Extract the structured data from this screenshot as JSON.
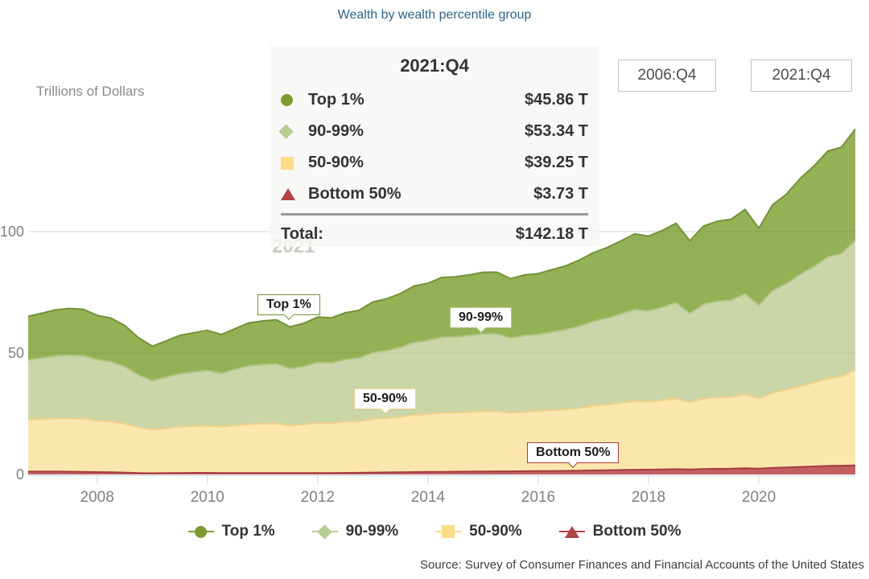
{
  "title": "Wealth by wealth percentile group",
  "y_axis_label": "Trillions of Dollars",
  "watermark_year": "2021",
  "range_selectors": [
    {
      "label": "2006:Q4"
    },
    {
      "label": "2021:Q4"
    }
  ],
  "tooltip": {
    "title": "2021:Q4",
    "rows": [
      {
        "label": "Top 1%",
        "value": "$45.86 T"
      },
      {
        "label": "90-99%",
        "value": "$53.34 T"
      },
      {
        "label": "50-90%",
        "value": "$39.25 T"
      },
      {
        "label": "Bottom 50%",
        "value": "$3.73 T"
      }
    ],
    "total_label": "Total:",
    "total_value": "$142.18 T"
  },
  "source": "Source: Survey of Consumer Finances and Financial Accounts of the United States",
  "chart_data": {
    "type": "area",
    "stacked": true,
    "title": "Wealth by wealth percentile group",
    "ylabel": "Trillions of Dollars",
    "xlim": [
      2006.75,
      2021.75
    ],
    "ylim": [
      0,
      150
    ],
    "y_ticks": [
      0,
      50,
      100
    ],
    "x_ticks": [
      2008,
      2010,
      2012,
      2014,
      2016,
      2018,
      2020
    ],
    "grid": "horizontal",
    "legend_position": "bottom",
    "x_period_start": "2006:Q4",
    "x_period_end": "2021:Q4",
    "x": [
      2006.75,
      2007,
      2007.25,
      2007.5,
      2007.75,
      2008,
      2008.25,
      2008.5,
      2008.75,
      2009,
      2009.25,
      2009.5,
      2009.75,
      2010,
      2010.25,
      2010.5,
      2010.75,
      2011,
      2011.25,
      2011.5,
      2011.75,
      2012,
      2012.25,
      2012.5,
      2012.75,
      2013,
      2013.25,
      2013.5,
      2013.75,
      2014,
      2014.25,
      2014.5,
      2014.75,
      2015,
      2015.25,
      2015.5,
      2015.75,
      2016,
      2016.25,
      2016.5,
      2016.75,
      2017,
      2017.25,
      2017.5,
      2017.75,
      2018,
      2018.25,
      2018.5,
      2018.75,
      2019,
      2019.25,
      2019.5,
      2019.75,
      2020,
      2020.25,
      2020.5,
      2020.75,
      2021,
      2021.25,
      2021.5,
      2021.75
    ],
    "series": [
      {
        "id": "top1",
        "name": "Top 1%",
        "marker": "circle",
        "fill": "#95b155",
        "stroke": "#72923a",
        "marker_color": "#7d9b31",
        "values": [
          18.0,
          18.5,
          19.0,
          19.3,
          19.2,
          18.3,
          18.0,
          17.0,
          15.4,
          14.2,
          15.0,
          15.8,
          16.2,
          16.6,
          16.0,
          16.8,
          17.7,
          18.0,
          18.2,
          17.2,
          17.8,
          18.7,
          18.6,
          19.3,
          19.7,
          20.9,
          21.4,
          22.2,
          23.3,
          23.7,
          24.6,
          24.7,
          25.0,
          25.4,
          25.4,
          24.4,
          25.0,
          25.1,
          25.7,
          26.3,
          27.2,
          28.3,
          29.1,
          30.1,
          31.2,
          30.8,
          31.7,
          32.8,
          30.0,
          32.3,
          33.0,
          33.3,
          34.8,
          31.8,
          35.3,
          36.9,
          39.5,
          41.4,
          43.6,
          43.9,
          45.86
        ]
      },
      {
        "id": "p90-99",
        "name": "90-99%",
        "marker": "diamond",
        "fill": "#cbd6a8",
        "stroke": "#b2c687",
        "marker_color": "#b9cd90",
        "values": [
          24.7,
          25.2,
          25.8,
          26.0,
          25.9,
          25.0,
          24.6,
          23.4,
          21.5,
          20.2,
          21.0,
          21.9,
          22.3,
          22.7,
          22.0,
          23.0,
          24.0,
          24.3,
          24.5,
          23.3,
          23.9,
          24.9,
          24.8,
          25.6,
          26.0,
          27.3,
          27.8,
          28.6,
          29.8,
          30.2,
          31.1,
          31.2,
          31.5,
          31.9,
          31.9,
          30.8,
          31.4,
          31.6,
          32.2,
          32.8,
          33.7,
          34.8,
          35.6,
          36.6,
          37.7,
          37.3,
          38.2,
          39.3,
          36.5,
          38.9,
          39.6,
          39.9,
          41.4,
          38.4,
          42.0,
          43.6,
          46.0,
          47.8,
          50.0,
          50.5,
          53.34
        ]
      },
      {
        "id": "p50-90",
        "name": "50-90%",
        "marker": "square",
        "fill": "#fbe7ad",
        "stroke": "#f0d189",
        "marker_color": "#fbdc87",
        "values": [
          21.2,
          21.5,
          21.8,
          21.9,
          21.8,
          21.2,
          20.9,
          20.2,
          18.8,
          17.9,
          18.4,
          19.0,
          19.2,
          19.4,
          19.0,
          19.6,
          20.1,
          20.3,
          20.4,
          19.7,
          20.0,
          20.6,
          20.5,
          21.0,
          21.2,
          22.0,
          22.3,
          22.8,
          23.5,
          23.8,
          24.3,
          24.3,
          24.5,
          24.7,
          24.7,
          24.1,
          24.4,
          24.6,
          25.0,
          25.3,
          25.8,
          26.5,
          27.0,
          27.6,
          28.2,
          28.0,
          28.5,
          29.1,
          27.6,
          28.9,
          29.3,
          29.5,
          30.4,
          28.8,
          31.0,
          32.0,
          33.3,
          34.5,
          36.0,
          36.8,
          39.25
        ]
      },
      {
        "id": "bottom50",
        "name": "Bottom 50%",
        "marker": "triangle",
        "fill": "#c25f60",
        "stroke": "#a43d3f",
        "marker_color": "#b04446",
        "values": [
          1.2,
          1.2,
          1.2,
          1.15,
          1.1,
          1.0,
          0.9,
          0.8,
          0.6,
          0.5,
          0.55,
          0.6,
          0.65,
          0.65,
          0.6,
          0.6,
          0.6,
          0.6,
          0.6,
          0.55,
          0.55,
          0.6,
          0.6,
          0.65,
          0.7,
          0.8,
          0.85,
          0.9,
          1.0,
          1.05,
          1.1,
          1.15,
          1.2,
          1.25,
          1.3,
          1.3,
          1.35,
          1.4,
          1.45,
          1.5,
          1.6,
          1.7,
          1.75,
          1.85,
          1.95,
          2.0,
          2.1,
          2.2,
          2.1,
          2.25,
          2.35,
          2.4,
          2.55,
          2.4,
          2.7,
          2.9,
          3.1,
          3.3,
          3.5,
          3.6,
          3.73
        ]
      }
    ]
  }
}
